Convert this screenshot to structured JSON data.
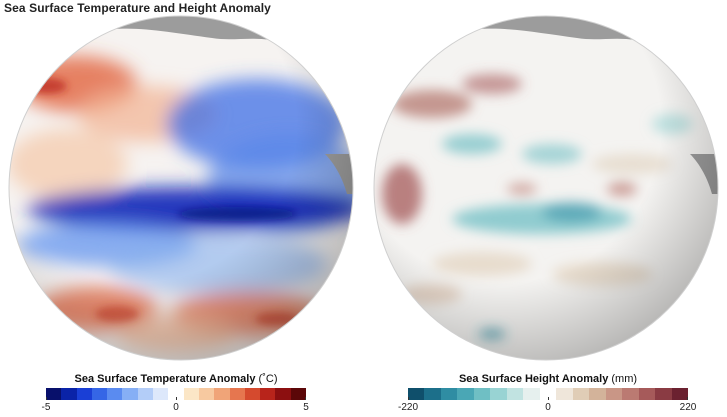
{
  "title": "Sea Surface Temperature and Height Anomaly",
  "sst_legend": {
    "label": "Sea Surface Temperature Anomaly",
    "unit": "(˚C)",
    "min": "-5",
    "mid": "0",
    "max": "5",
    "colors": [
      "#08106b",
      "#0a23a8",
      "#1a3fd6",
      "#3566e6",
      "#5a8bf0",
      "#86aff5",
      "#b3cdf8",
      "#dde8fb",
      "#ffffff",
      "#fbe6c6",
      "#f7c9a0",
      "#f0a478",
      "#e6764f",
      "#d54a2e",
      "#b8241b",
      "#8c0f10",
      "#5b0708"
    ]
  },
  "ssh_legend": {
    "label": "Sea Surface Height Anomaly",
    "unit": "(mm)",
    "min": "-220",
    "mid": "0",
    "max": "220",
    "colors": [
      "#0f4f6b",
      "#1c6f8a",
      "#2f8da3",
      "#4aa7b5",
      "#6fbfc4",
      "#98d3d3",
      "#c1e3e1",
      "#e6f0ee",
      "#ffffff",
      "#efe6da",
      "#e0cdb6",
      "#d3b39a",
      "#c99686",
      "#bb7a72",
      "#a65a5a",
      "#8a3b43",
      "#6b2130"
    ]
  }
}
